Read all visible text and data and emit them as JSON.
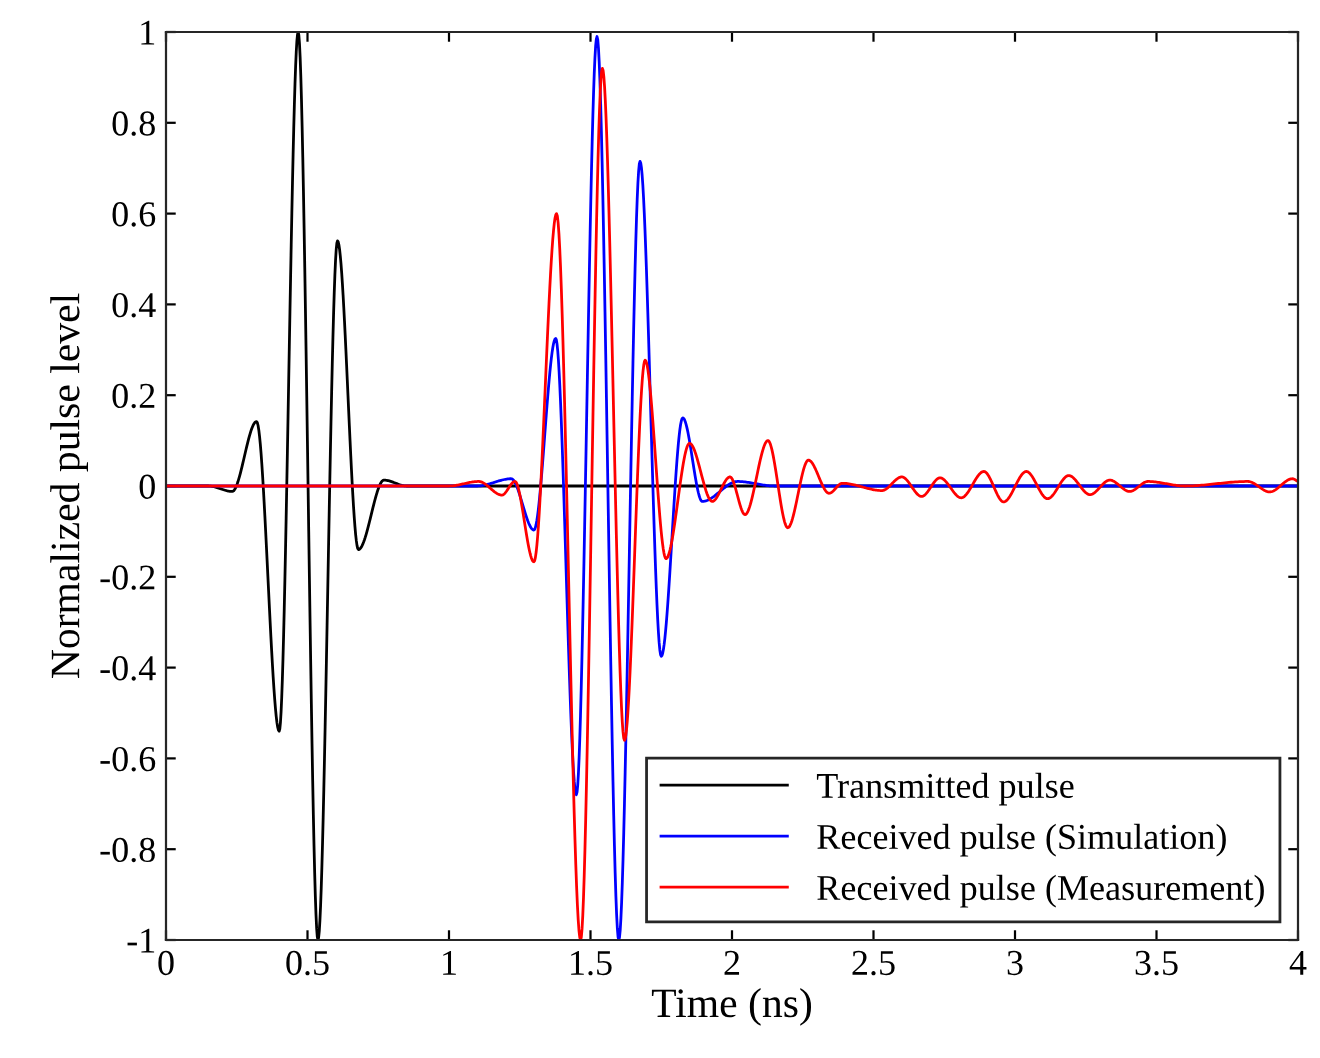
{
  "chart_data": {
    "type": "line",
    "xlabel": "Time (ns)",
    "ylabel": "Normalized pulse level",
    "xlim": [
      0,
      4
    ],
    "ylim": [
      -1,
      1
    ],
    "xticks": [
      0,
      0.5,
      1,
      1.5,
      2,
      2.5,
      3,
      3.5,
      4
    ],
    "yticks": [
      {
        "value": -1,
        "label": "-1"
      },
      {
        "value": -0.8,
        "label": "-0.8"
      },
      {
        "value": -0.6,
        "label": "-0.6"
      },
      {
        "value": -0.4,
        "label": "-0.4"
      },
      {
        "value": -0.2,
        "label": "-0.2"
      },
      0,
      0.2,
      0.4,
      0.6,
      0.8,
      1
    ],
    "grid": false,
    "legend": "bottom right",
    "marker": "none",
    "line_style": "solid",
    "series": [
      {
        "name": "Transmitted pulse",
        "color": "#000000",
        "x": [
          0,
          0.15,
          0.234,
          0.32,
          0.4,
          0.467,
          0.537,
          0.606,
          0.68,
          0.77,
          0.85,
          4
        ],
        "values": [
          0,
          0,
          -0.012,
          0.142,
          -0.54,
          1,
          -1,
          0.54,
          -0.14,
          0.013,
          0,
          0
        ]
      },
      {
        "name": "Received pulse (Simulation)",
        "color": "#0000ff",
        "x": [
          0,
          1.1,
          1.22,
          1.3,
          1.377,
          1.45,
          1.523,
          1.6,
          1.675,
          1.75,
          1.826,
          1.895,
          2.02,
          2.15,
          4
        ],
        "values": [
          0,
          0,
          0.016,
          -0.097,
          0.325,
          -0.68,
          0.99,
          -1,
          0.715,
          -0.375,
          0.15,
          -0.034,
          0.01,
          0,
          0
        ]
      },
      {
        "name": "Received pulse (Measurement)",
        "color": "#ff0000",
        "x": [
          0,
          1.0,
          1.105,
          1.187,
          1.233,
          1.3,
          1.38,
          1.465,
          1.542,
          1.62,
          1.693,
          1.767,
          1.85,
          1.93,
          1.993,
          2.046,
          2.127,
          2.197,
          2.27,
          2.343,
          2.39,
          2.53,
          2.6,
          2.67,
          2.735,
          2.81,
          2.89,
          2.96,
          3.04,
          3.115,
          3.19,
          3.265,
          3.335,
          3.405,
          3.47,
          3.6,
          3.823,
          3.9,
          3.98,
          4
        ],
        "values": [
          0,
          0,
          0.01,
          -0.02,
          0.01,
          -0.167,
          0.6,
          -1,
          0.92,
          -0.56,
          0.277,
          -0.16,
          0.094,
          -0.034,
          0.02,
          -0.063,
          0.1,
          -0.092,
          0.057,
          -0.016,
          0.006,
          -0.01,
          0.02,
          -0.023,
          0.018,
          -0.026,
          0.032,
          -0.035,
          0.032,
          -0.028,
          0.023,
          -0.019,
          0.013,
          -0.012,
          0.01,
          0,
          0.01,
          -0.013,
          0.016,
          0.01
        ]
      }
    ]
  }
}
